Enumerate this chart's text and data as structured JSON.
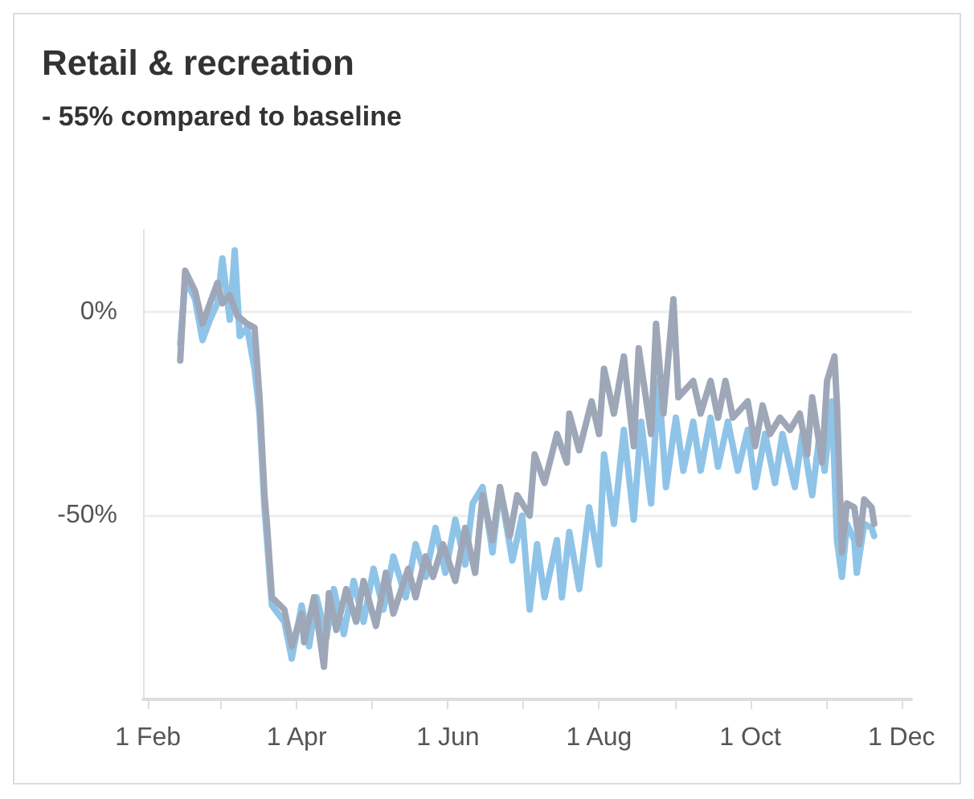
{
  "chart_data": {
    "type": "line",
    "title": "Retail & recreation",
    "subtitle": "- 55% compared to baseline",
    "xlim": [
      "--01-30",
      "--12-05"
    ],
    "xticks": [
      {
        "value": "--02-01",
        "label": "1 Feb"
      },
      {
        "value": "--03-01",
        "label": null
      },
      {
        "value": "--04-01",
        "label": "1 Apr"
      },
      {
        "value": "--05-01",
        "label": null
      },
      {
        "value": "--06-01",
        "label": "1 Jun"
      },
      {
        "value": "--07-01",
        "label": null
      },
      {
        "value": "--08-01",
        "label": "1 Aug"
      },
      {
        "value": "--09-01",
        "label": null
      },
      {
        "value": "--10-01",
        "label": "1 Oct"
      },
      {
        "value": "--11-01",
        "label": null
      },
      {
        "value": "--12-01",
        "label": "1 Dec"
      }
    ],
    "ylim": [
      -95,
      20
    ],
    "yticks": [
      {
        "value": 0,
        "label": "0%"
      },
      {
        "value": -50,
        "label": "-50%"
      }
    ],
    "grid": "y",
    "marker": "none",
    "line_style": "solid",
    "series": [
      {
        "color": "#8fc4e8",
        "x": [
          "--02-14",
          "--02-16",
          "--02-20",
          "--02-23",
          "--02-26",
          "--02-29",
          "--03-02",
          "--03-05",
          "--03-07",
          "--03-09",
          "--03-12",
          "--03-15",
          "--03-17",
          "--03-19",
          "--03-22",
          "--03-27",
          "--03-30",
          "--04-03",
          "--04-06",
          "--04-09",
          "--04-13",
          "--04-16",
          "--04-20",
          "--04-24",
          "--04-28",
          "--05-02",
          "--05-06",
          "--05-10",
          "--05-15",
          "--05-19",
          "--05-23",
          "--05-27",
          "--05-31",
          "--06-04",
          "--06-08",
          "--06-11",
          "--06-15",
          "--06-19",
          "--06-22",
          "--06-27",
          "--07-01",
          "--07-04",
          "--07-07",
          "--07-10",
          "--07-15",
          "--07-17",
          "--07-20",
          "--07-24",
          "--07-28",
          "--08-01",
          "--08-03",
          "--08-07",
          "--08-11",
          "--08-15",
          "--08-18",
          "--08-22",
          "--08-25",
          "--08-28",
          "--09-01",
          "--09-04",
          "--09-08",
          "--09-11",
          "--09-15",
          "--09-18",
          "--09-22",
          "--09-26",
          "--09-30",
          "--10-03",
          "--10-07",
          "--10-11",
          "--10-14",
          "--10-19",
          "--10-22",
          "--10-26",
          "--10-29",
          "--10-31",
          "--11-03",
          "--11-05",
          "--11-07",
          "--11-09",
          "--11-12",
          "--11-13",
          "--11-16",
          "--11-19",
          "--11-20"
        ],
        "values": [
          -8,
          8,
          3,
          -7,
          -2,
          2,
          13,
          -2,
          15,
          -6,
          -4,
          -14,
          -25,
          -48,
          -72,
          -76,
          -85,
          -72,
          -82,
          -70,
          -80,
          -68,
          -79,
          -66,
          -76,
          -63,
          -73,
          -60,
          -70,
          -57,
          -65,
          -53,
          -64,
          -51,
          -62,
          -47,
          -43,
          -59,
          -43,
          -61,
          -50,
          -73,
          -57,
          -70,
          -56,
          -70,
          -54,
          -68,
          -48,
          -62,
          -35,
          -52,
          -29,
          -51,
          -27,
          -47,
          -17,
          -43,
          -26,
          -39,
          -27,
          -39,
          -26,
          -38,
          -27,
          -39,
          -29,
          -43,
          -30,
          -42,
          -30,
          -43,
          -30,
          -45,
          -30,
          -39,
          -22,
          -56,
          -65,
          -52,
          -56,
          -64,
          -52,
          -53,
          -55
        ]
      },
      {
        "color": "#9ea7b8",
        "x": [
          "--02-14",
          "--02-16",
          "--02-20",
          "--02-23",
          "--02-26",
          "--02-29",
          "--03-02",
          "--03-05",
          "--03-08",
          "--03-12",
          "--03-15",
          "--03-17",
          "--03-19",
          "--03-20",
          "--03-22",
          "--03-27",
          "--03-30",
          "--04-03",
          "--04-04",
          "--04-08",
          "--04-12",
          "--04-14",
          "--04-17",
          "--04-21",
          "--04-25",
          "--04-28",
          "--05-03",
          "--05-07",
          "--05-10",
          "--05-16",
          "--05-19",
          "--05-23",
          "--05-26",
          "--05-30",
          "--06-04",
          "--06-08",
          "--06-12",
          "--06-15",
          "--06-19",
          "--06-22",
          "--06-26",
          "--06-29",
          "--07-04",
          "--07-06",
          "--07-10",
          "--07-15",
          "--07-19",
          "--07-20",
          "--07-24",
          "--07-29",
          "--08-01",
          "--08-03",
          "--08-07",
          "--08-11",
          "--08-15",
          "--08-17",
          "--08-22",
          "--08-24",
          "--08-27",
          "--08-31",
          "--09-02",
          "--09-08",
          "--09-11",
          "--09-15",
          "--09-18",
          "--09-21",
          "--09-24",
          "--09-30",
          "--10-03",
          "--10-06",
          "--10-09",
          "--10-13",
          "--10-17",
          "--10-21",
          "--10-24",
          "--10-26",
          "--10-30",
          "--11-01",
          "--11-04",
          "--11-05",
          "--11-07",
          "--11-09",
          "--11-12",
          "--11-14",
          "--11-16",
          "--11-19",
          "--11-20"
        ],
        "values": [
          -12,
          10,
          5,
          -3,
          2,
          7,
          2,
          4,
          -1,
          -3,
          -4,
          -21,
          -45,
          -52,
          -70,
          -73,
          -82,
          -74,
          -81,
          -70,
          -87,
          -69,
          -78,
          -68,
          -76,
          -66,
          -77,
          -64,
          -74,
          -63,
          -70,
          -60,
          -65,
          -57,
          -66,
          -53,
          -64,
          -45,
          -56,
          -43,
          -55,
          -45,
          -50,
          -35,
          -42,
          -30,
          -37,
          -25,
          -34,
          -22,
          -30,
          -14,
          -25,
          -11,
          -33,
          -9,
          -30,
          -3,
          -25,
          3,
          -21,
          -17,
          -25,
          -17,
          -26,
          -17,
          -26,
          -22,
          -33,
          -23,
          -30,
          -26,
          -29,
          -25,
          -35,
          -21,
          -37,
          -17,
          -11,
          -23,
          -59,
          -47,
          -48,
          -57,
          -46,
          -48,
          -52
        ]
      }
    ]
  }
}
